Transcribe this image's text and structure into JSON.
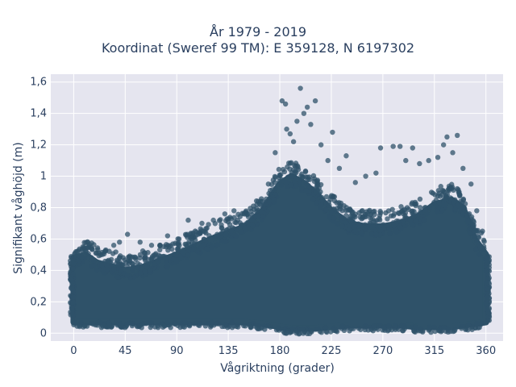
{
  "chart_data": {
    "type": "scatter",
    "title_line1": "År 1979 - 2019",
    "title_line2": "Koordinat (Sweref 99 TM): E 359128, N 6197302",
    "xlabel": "Vågriktning (grader)",
    "ylabel": "Signifikant våghöjd (m)",
    "xlim": [
      -20,
      375
    ],
    "ylim": [
      -0.05,
      1.65
    ],
    "xticks": [
      0,
      45,
      90,
      135,
      180,
      225,
      270,
      315,
      360
    ],
    "xtick_labels": [
      "0",
      "45",
      "90",
      "135",
      "180",
      "225",
      "270",
      "315",
      "360"
    ],
    "yticks": [
      0,
      0.2,
      0.4,
      0.6,
      0.8,
      1.0,
      1.2,
      1.4,
      1.6
    ],
    "ytick_labels": [
      "0",
      "0,2",
      "0,4",
      "0,6",
      "0,8",
      "1",
      "1,2",
      "1,4",
      "1,6"
    ],
    "grid": true,
    "marker_color": "#2f5269",
    "background_color": "#e5e5ef",
    "density_envelope": {
      "x": [
        0,
        10,
        20,
        30,
        45,
        60,
        75,
        90,
        105,
        120,
        135,
        150,
        165,
        180,
        190,
        200,
        210,
        225,
        240,
        255,
        270,
        285,
        300,
        315,
        330,
        340,
        350,
        360
      ],
      "y_low": [
        0.07,
        0.07,
        0.07,
        0.07,
        0.07,
        0.07,
        0.07,
        0.07,
        0.07,
        0.07,
        0.07,
        0.07,
        0.06,
        0.04,
        0.03,
        0.03,
        0.03,
        0.04,
        0.05,
        0.05,
        0.05,
        0.05,
        0.04,
        0.04,
        0.04,
        0.05,
        0.06,
        0.07
      ],
      "y_high": [
        0.48,
        0.5,
        0.45,
        0.43,
        0.4,
        0.42,
        0.46,
        0.5,
        0.55,
        0.6,
        0.64,
        0.68,
        0.78,
        0.95,
        1.0,
        0.96,
        0.9,
        0.78,
        0.7,
        0.68,
        0.68,
        0.7,
        0.74,
        0.82,
        0.85,
        0.8,
        0.6,
        0.5
      ]
    },
    "outlier_points": [
      {
        "x": 2,
        "y": 0.52
      },
      {
        "x": 8,
        "y": 0.55
      },
      {
        "x": 20,
        "y": 0.51
      },
      {
        "x": 28,
        "y": 0.53
      },
      {
        "x": 35,
        "y": 0.56
      },
      {
        "x": 40,
        "y": 0.58
      },
      {
        "x": 47,
        "y": 0.63
      },
      {
        "x": 58,
        "y": 0.58
      },
      {
        "x": 68,
        "y": 0.56
      },
      {
        "x": 82,
        "y": 0.62
      },
      {
        "x": 92,
        "y": 0.6
      },
      {
        "x": 100,
        "y": 0.72
      },
      {
        "x": 112,
        "y": 0.7
      },
      {
        "x": 122,
        "y": 0.72
      },
      {
        "x": 132,
        "y": 0.76
      },
      {
        "x": 140,
        "y": 0.78
      },
      {
        "x": 150,
        "y": 0.77
      },
      {
        "x": 160,
        "y": 0.82
      },
      {
        "x": 170,
        "y": 0.95
      },
      {
        "x": 176,
        "y": 1.15
      },
      {
        "x": 182,
        "y": 1.48
      },
      {
        "x": 185,
        "y": 1.46
      },
      {
        "x": 186,
        "y": 1.3
      },
      {
        "x": 189,
        "y": 1.27
      },
      {
        "x": 192,
        "y": 1.22
      },
      {
        "x": 195,
        "y": 1.35
      },
      {
        "x": 198,
        "y": 1.56
      },
      {
        "x": 201,
        "y": 1.4
      },
      {
        "x": 204,
        "y": 1.44
      },
      {
        "x": 207,
        "y": 1.33
      },
      {
        "x": 211,
        "y": 1.48
      },
      {
        "x": 216,
        "y": 1.2
      },
      {
        "x": 222,
        "y": 1.1
      },
      {
        "x": 226,
        "y": 1.28
      },
      {
        "x": 232,
        "y": 1.05
      },
      {
        "x": 238,
        "y": 1.13
      },
      {
        "x": 246,
        "y": 0.96
      },
      {
        "x": 255,
        "y": 1.0
      },
      {
        "x": 264,
        "y": 1.02
      },
      {
        "x": 268,
        "y": 1.18
      },
      {
        "x": 279,
        "y": 1.19
      },
      {
        "x": 285,
        "y": 1.19
      },
      {
        "x": 290,
        "y": 1.1
      },
      {
        "x": 296,
        "y": 1.18
      },
      {
        "x": 302,
        "y": 1.08
      },
      {
        "x": 310,
        "y": 1.1
      },
      {
        "x": 318,
        "y": 1.12
      },
      {
        "x": 323,
        "y": 1.2
      },
      {
        "x": 326,
        "y": 1.25
      },
      {
        "x": 331,
        "y": 1.15
      },
      {
        "x": 335,
        "y": 1.26
      },
      {
        "x": 340,
        "y": 1.05
      },
      {
        "x": 347,
        "y": 0.95
      },
      {
        "x": 352,
        "y": 0.78
      },
      {
        "x": 357,
        "y": 0.65
      }
    ]
  }
}
